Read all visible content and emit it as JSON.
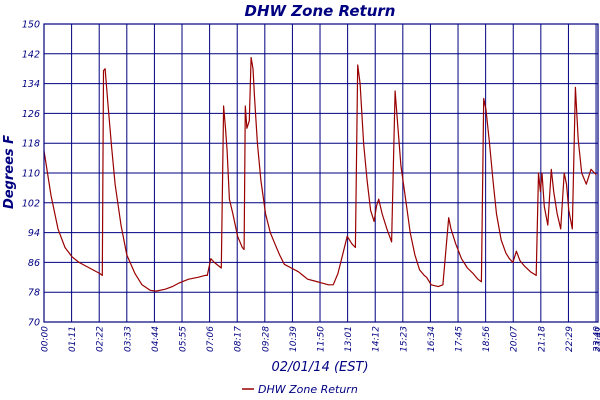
{
  "chart_data": {
    "type": "line",
    "title": "DHW Zone Return",
    "xlabel": "02/01/14 (EST)",
    "ylabel": "Degrees F",
    "ylim": [
      70,
      150
    ],
    "yticks": [
      70,
      78,
      86,
      94,
      102,
      110,
      118,
      126,
      134,
      142,
      150
    ],
    "xticks": [
      "00:00",
      "01:11",
      "02:22",
      "03:33",
      "04:44",
      "05:55",
      "07:06",
      "08:17",
      "09:28",
      "10:39",
      "11:50",
      "13:01",
      "14:12",
      "15:23",
      "16:34",
      "17:45",
      "18:56",
      "20:07",
      "21:18",
      "22:29",
      "23:40",
      "23:41"
    ],
    "grid": true,
    "legend_position": "bottom",
    "series": [
      {
        "name": "DHW Zone Return",
        "color": "#990000",
        "points": [
          [
            0.0,
            116
          ],
          [
            0.3,
            104
          ],
          [
            0.6,
            95
          ],
          [
            0.9,
            90
          ],
          [
            1.2,
            87.5
          ],
          [
            1.5,
            86
          ],
          [
            1.8,
            85
          ],
          [
            2.1,
            84
          ],
          [
            2.4,
            83
          ],
          [
            2.5,
            82.5
          ],
          [
            2.55,
            137.5
          ],
          [
            2.62,
            138
          ],
          [
            2.75,
            128
          ],
          [
            2.9,
            117
          ],
          [
            3.05,
            107
          ],
          [
            3.3,
            96
          ],
          [
            3.55,
            88
          ],
          [
            3.9,
            83
          ],
          [
            4.2,
            80
          ],
          [
            4.55,
            78.5
          ],
          [
            4.8,
            78.3
          ],
          [
            5.2,
            78.8
          ],
          [
            5.5,
            79.5
          ],
          [
            5.8,
            80.5
          ],
          [
            6.2,
            81.5
          ],
          [
            6.6,
            82
          ],
          [
            6.9,
            82.5
          ],
          [
            7.0,
            82.5
          ],
          [
            7.15,
            87
          ],
          [
            7.3,
            86
          ],
          [
            7.5,
            85
          ],
          [
            7.6,
            84.5
          ],
          [
            7.7,
            128
          ],
          [
            7.78,
            122
          ],
          [
            7.85,
            116
          ],
          [
            7.95,
            103
          ],
          [
            8.1,
            99
          ],
          [
            8.3,
            93
          ],
          [
            8.5,
            90
          ],
          [
            8.58,
            89.5
          ],
          [
            8.63,
            128
          ],
          [
            8.7,
            122
          ],
          [
            8.8,
            124
          ],
          [
            8.88,
            141
          ],
          [
            8.96,
            138
          ],
          [
            9.03,
            130
          ],
          [
            9.15,
            118
          ],
          [
            9.3,
            108
          ],
          [
            9.5,
            99
          ],
          [
            9.7,
            94
          ],
          [
            9.9,
            91
          ],
          [
            10.1,
            88
          ],
          [
            10.3,
            85.5
          ],
          [
            10.6,
            84.5
          ],
          [
            10.9,
            83.5
          ],
          [
            11.1,
            82.5
          ],
          [
            11.3,
            81.5
          ],
          [
            11.6,
            81
          ],
          [
            11.9,
            80.5
          ],
          [
            12.2,
            80
          ],
          [
            12.4,
            80
          ],
          [
            12.6,
            83
          ],
          [
            12.8,
            88
          ],
          [
            13.0,
            93
          ],
          [
            13.2,
            91
          ],
          [
            13.35,
            90
          ],
          [
            13.45,
            139
          ],
          [
            13.55,
            134
          ],
          [
            13.7,
            118
          ],
          [
            13.85,
            108
          ],
          [
            14.0,
            100
          ],
          [
            14.15,
            97
          ],
          [
            14.25,
            101
          ],
          [
            14.35,
            103
          ],
          [
            14.5,
            99
          ],
          [
            14.7,
            95
          ],
          [
            14.9,
            91.5
          ],
          [
            15.05,
            132
          ],
          [
            15.15,
            124
          ],
          [
            15.3,
            112
          ],
          [
            15.5,
            103
          ],
          [
            15.7,
            94
          ],
          [
            15.9,
            88
          ],
          [
            16.1,
            84
          ],
          [
            16.3,
            82.5
          ],
          [
            16.4,
            82
          ],
          [
            16.6,
            80
          ],
          [
            16.9,
            79.5
          ],
          [
            17.1,
            80
          ],
          [
            17.35,
            98
          ],
          [
            17.45,
            95
          ],
          [
            17.65,
            91
          ],
          [
            17.9,
            87
          ],
          [
            18.15,
            84.5
          ],
          [
            18.4,
            83
          ],
          [
            18.6,
            81.5
          ],
          [
            18.75,
            80.8
          ],
          [
            18.85,
            130
          ],
          [
            18.95,
            127
          ],
          [
            19.1,
            118
          ],
          [
            19.25,
            108
          ],
          [
            19.4,
            99
          ],
          [
            19.6,
            92
          ],
          [
            19.8,
            88.5
          ],
          [
            19.95,
            87
          ],
          [
            20.1,
            86
          ],
          [
            20.25,
            89
          ],
          [
            20.4,
            86.5
          ],
          [
            20.6,
            85
          ],
          [
            20.85,
            83.5
          ],
          [
            21.1,
            82.5
          ],
          [
            21.2,
            110
          ],
          [
            21.28,
            105
          ],
          [
            21.35,
            110
          ],
          [
            21.45,
            101
          ],
          [
            21.6,
            96
          ],
          [
            21.75,
            111
          ],
          [
            21.85,
            105
          ],
          [
            22.0,
            99
          ],
          [
            22.15,
            95
          ],
          [
            22.3,
            110
          ],
          [
            22.4,
            107
          ],
          [
            22.5,
            100
          ],
          [
            22.65,
            95
          ],
          [
            22.78,
            133
          ],
          [
            22.9,
            119
          ],
          [
            23.05,
            110
          ],
          [
            23.25,
            107
          ],
          [
            23.45,
            111
          ],
          [
            23.6,
            110
          ],
          [
            23.68,
            109.5
          ]
        ]
      }
    ]
  }
}
